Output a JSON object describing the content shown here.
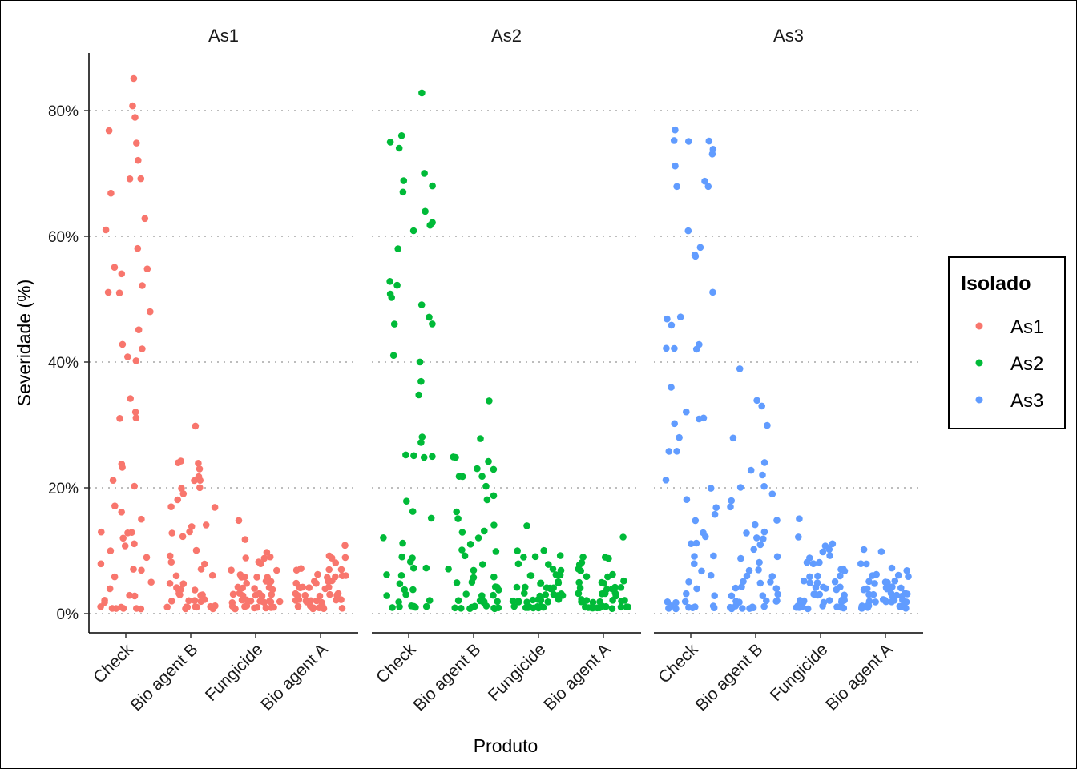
{
  "chart_data": {
    "type": "scatter",
    "xlabel": "Produto",
    "ylabel": "Severidade (%)",
    "categories": [
      "Check",
      "Bio agent B",
      "Fungicide",
      "Bio agent A"
    ],
    "y_ticks": [
      "0%",
      "20%",
      "40%",
      "60%",
      "80%"
    ],
    "ylim": [
      0,
      88
    ],
    "grid": "horizontal dotted",
    "legend": {
      "title": "Isolado",
      "placement": "right",
      "entries": [
        "As1",
        "As2",
        "As3"
      ]
    },
    "colors": {
      "As1": "#F8766D",
      "As2": "#00BA38",
      "As3": "#619CFF"
    },
    "panels": [
      {
        "title": "As1",
        "series": "As1",
        "groups": [
          {
            "category": "Check",
            "values": [
              85,
              81,
              79,
              77,
              75,
              72,
              69,
              69,
              67,
              63,
              61,
              58,
              55,
              55,
              54,
              52,
              51,
              51,
              48,
              45,
              43,
              42,
              41,
              40,
              34,
              32,
              31,
              31,
              24,
              23,
              21,
              20,
              17,
              16,
              15,
              13,
              13,
              13,
              12,
              11,
              11,
              10,
              9,
              8,
              7,
              7,
              6,
              5,
              4,
              3,
              3,
              2,
              2,
              1,
              1,
              1,
              1,
              1,
              1,
              1
            ]
          },
          {
            "category": "Bio agent B",
            "values": [
              30,
              24,
              24,
              24,
              23,
              22,
              21,
              21,
              20,
              20,
              19,
              18,
              17,
              17,
              14,
              14,
              13,
              13,
              12,
              10,
              9,
              8,
              8,
              7,
              6,
              6,
              5,
              5,
              4,
              4,
              4,
              4,
              3,
              3,
              3,
              3,
              2,
              2,
              2,
              2,
              2,
              1,
              1,
              1,
              1,
              1,
              1,
              1,
              1,
              1
            ]
          },
          {
            "category": "Fungicide",
            "values": [
              15,
              12,
              10,
              9,
              9,
              9,
              8,
              8,
              7,
              7,
              6,
              6,
              6,
              6,
              6,
              5,
              5,
              5,
              5,
              4,
              4,
              4,
              4,
              4,
              3,
              3,
              3,
              3,
              3,
              3,
              3,
              2,
              2,
              2,
              2,
              2,
              2,
              2,
              2,
              2,
              2,
              1,
              1,
              1,
              1,
              1,
              1,
              1,
              1,
              1
            ]
          },
          {
            "category": "Bio agent A",
            "values": [
              11,
              9,
              9,
              9,
              8,
              7,
              7,
              7,
              7,
              6,
              6,
              6,
              6,
              6,
              5,
              5,
              5,
              5,
              5,
              4,
              4,
              4,
              4,
              4,
              4,
              3,
              3,
              3,
              3,
              3,
              3,
              3,
              2,
              2,
              2,
              2,
              2,
              2,
              2,
              2,
              2,
              1,
              1,
              1,
              1,
              1,
              1,
              1,
              1,
              1
            ]
          }
        ]
      },
      {
        "title": "As2",
        "series": "As2",
        "groups": [
          {
            "category": "Check",
            "values": [
              83,
              76,
              75,
              74,
              70,
              69,
              68,
              67,
              64,
              62,
              62,
              61,
              58,
              53,
              52,
              51,
              50,
              49,
              47,
              46,
              46,
              41,
              40,
              37,
              35,
              28,
              27,
              25,
              25,
              25,
              25,
              18,
              16,
              15,
              12,
              11,
              9,
              9,
              8,
              7,
              7,
              6,
              6,
              5,
              4,
              4,
              3,
              3,
              2,
              2,
              1,
              1,
              1,
              1,
              1,
              1
            ]
          },
          {
            "category": "Bio agent B",
            "values": [
              34,
              28,
              25,
              25,
              24,
              23,
              23,
              22,
              22,
              22,
              20,
              19,
              18,
              16,
              15,
              14,
              13,
              13,
              12,
              11,
              10,
              10,
              9,
              8,
              7,
              7,
              6,
              6,
              5,
              5,
              4,
              4,
              4,
              3,
              3,
              3,
              2,
              2,
              2,
              2,
              2,
              1,
              1,
              1,
              1,
              1,
              1,
              1,
              1,
              1
            ]
          },
          {
            "category": "Fungicide",
            "values": [
              14,
              10,
              10,
              9,
              9,
              9,
              8,
              8,
              7,
              7,
              6,
              6,
              6,
              6,
              5,
              5,
              5,
              5,
              4,
              4,
              4,
              4,
              4,
              4,
              3,
              3,
              3,
              3,
              3,
              3,
              3,
              3,
              2,
              2,
              2,
              2,
              2,
              2,
              2,
              2,
              2,
              1,
              1,
              1,
              1,
              1,
              1,
              1,
              1,
              1
            ]
          },
          {
            "category": "Bio agent A",
            "values": [
              12,
              9,
              9,
              9,
              8,
              8,
              7,
              7,
              6,
              6,
              6,
              5,
              5,
              5,
              5,
              4,
              4,
              4,
              4,
              4,
              3,
              3,
              3,
              3,
              3,
              3,
              3,
              2,
              2,
              2,
              2,
              2,
              2,
              2,
              2,
              2,
              2,
              1,
              1,
              1,
              1,
              1,
              1,
              1,
              1,
              1,
              1,
              1,
              1,
              1
            ]
          }
        ]
      },
      {
        "title": "As3",
        "series": "As3",
        "groups": [
          {
            "category": "Check",
            "values": [
              77,
              75,
              75,
              75,
              74,
              73,
              71,
              69,
              68,
              68,
              61,
              58,
              57,
              57,
              51,
              47,
              47,
              46,
              43,
              42,
              42,
              42,
              36,
              32,
              31,
              31,
              30,
              28,
              26,
              26,
              21,
              20,
              18,
              17,
              16,
              15,
              13,
              12,
              11,
              11,
              9,
              9,
              8,
              7,
              6,
              5,
              4,
              3,
              3,
              2,
              2,
              2,
              1,
              1,
              1,
              1,
              1,
              1,
              1,
              1
            ]
          },
          {
            "category": "Bio agent B",
            "values": [
              39,
              34,
              33,
              30,
              28,
              24,
              23,
              22,
              20,
              20,
              19,
              18,
              17,
              15,
              14,
              13,
              13,
              12,
              12,
              11,
              10,
              9,
              9,
              8,
              7,
              7,
              6,
              6,
              5,
              5,
              5,
              4,
              4,
              4,
              3,
              3,
              3,
              2,
              2,
              2,
              2,
              2,
              1,
              1,
              1,
              1,
              1,
              1,
              1,
              1
            ]
          },
          {
            "category": "Fungicide",
            "values": [
              15,
              12,
              11,
              11,
              10,
              10,
              9,
              9,
              8,
              8,
              8,
              7,
              7,
              7,
              6,
              6,
              6,
              5,
              5,
              5,
              5,
              4,
              4,
              4,
              4,
              4,
              3,
              3,
              3,
              3,
              3,
              3,
              2,
              2,
              2,
              2,
              2,
              2,
              2,
              2,
              2,
              1,
              1,
              1,
              1,
              1,
              1,
              1,
              1,
              1
            ]
          },
          {
            "category": "Bio agent A",
            "values": [
              10,
              10,
              8,
              8,
              7,
              7,
              6,
              6,
              6,
              6,
              5,
              5,
              5,
              5,
              5,
              4,
              4,
              4,
              4,
              4,
              4,
              3,
              3,
              3,
              3,
              3,
              3,
              3,
              3,
              2,
              2,
              2,
              2,
              2,
              2,
              2,
              2,
              2,
              2,
              1,
              1,
              1,
              1,
              1,
              1,
              1,
              1,
              1,
              1,
              1
            ]
          }
        ]
      }
    ]
  }
}
